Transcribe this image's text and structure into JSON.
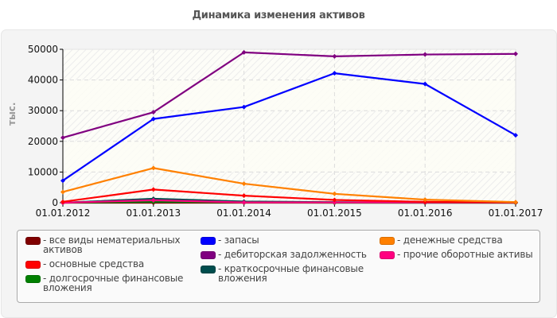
{
  "title": "Динамика изменения активов",
  "chart_data": {
    "type": "line",
    "title": "Динамика изменения активов",
    "xlabel": "",
    "ylabel": "тыс.",
    "ylim": [
      0,
      50000
    ],
    "yticks": [
      0,
      10000,
      20000,
      30000,
      40000,
      50000
    ],
    "grid": true,
    "legend_position": "bottom",
    "categories": [
      "01.01.2012",
      "01.01.2013",
      "01.01.2014",
      "01.01.2015",
      "01.01.2016",
      "01.01.2017"
    ],
    "series": [
      {
        "name": "все виды нематериальных активов",
        "color": "#800000",
        "values": [
          0,
          0,
          0,
          0,
          0,
          0
        ]
      },
      {
        "name": "основные средства",
        "color": "#ff0000",
        "values": [
          300,
          4300,
          2300,
          900,
          300,
          100
        ]
      },
      {
        "name": "долгосрочные финансовые вложения",
        "color": "#008000",
        "values": [
          0,
          300,
          100,
          0,
          0,
          0
        ]
      },
      {
        "name": "запасы",
        "color": "#0000ff",
        "values": [
          7200,
          27300,
          31200,
          42200,
          38700,
          22000
        ]
      },
      {
        "name": "дебиторская задолженность",
        "color": "#800080",
        "values": [
          21200,
          29500,
          49000,
          47700,
          48300,
          48500
        ]
      },
      {
        "name": "краткосрочные финансовые вложения",
        "color": "#004d4d",
        "values": [
          0,
          1300,
          400,
          200,
          100,
          0
        ]
      },
      {
        "name": "денежные средства",
        "color": "#ff8000",
        "values": [
          3500,
          11300,
          6200,
          2900,
          1000,
          200
        ]
      },
      {
        "name": "прочие оборотные активы",
        "color": "#ff0080",
        "values": [
          0,
          800,
          100,
          100,
          100,
          100
        ]
      }
    ]
  },
  "legend": {
    "columns": [
      [
        {
          "label": "- все виды нематериальных активов",
          "color": "#800000"
        },
        {
          "label": "- основные средства",
          "color": "#ff0000"
        },
        {
          "label": "- долгосрочные финансовые вложения",
          "color": "#008000"
        }
      ],
      [
        {
          "label": "- запасы",
          "color": "#0000ff"
        },
        {
          "label": "- дебиторская задолженность",
          "color": "#800080"
        },
        {
          "label": "- краткосрочные финансовые вложения",
          "color": "#004d4d"
        }
      ],
      [
        {
          "label": "- денежные средства",
          "color": "#ff8000"
        },
        {
          "label": "- прочие оборотные активы",
          "color": "#ff0080"
        }
      ]
    ]
  }
}
